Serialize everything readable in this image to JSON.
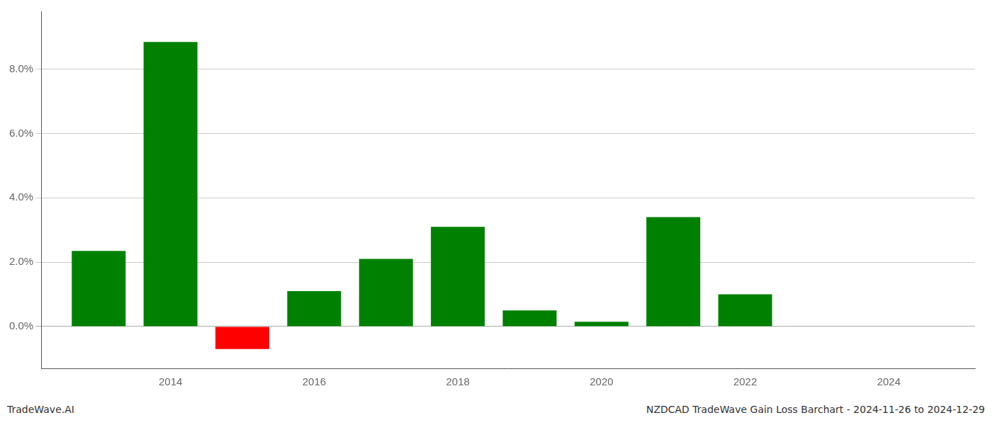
{
  "chart_data": {
    "type": "bar",
    "x": [
      2013,
      2014,
      2015,
      2016,
      2017,
      2018,
      2019,
      2020,
      2021,
      2022,
      2023
    ],
    "values": [
      2.35,
      8.85,
      -0.7,
      1.1,
      2.1,
      3.1,
      0.5,
      0.15,
      3.4,
      1.0,
      0.0
    ],
    "colors": [
      "#008000",
      "#008000",
      "#ff0000",
      "#008000",
      "#008000",
      "#008000",
      "#008000",
      "#008000",
      "#008000",
      "#008000",
      "#008000"
    ],
    "xlim": [
      2012.2,
      2025.2
    ],
    "xticks": [
      2014,
      2016,
      2018,
      2020,
      2022,
      2024
    ],
    "ylim": [
      -1.3,
      9.8
    ],
    "yticks": [
      {
        "value": 0.0,
        "label": "0.0%"
      },
      {
        "value": 2.0,
        "label": "2.0%"
      },
      {
        "value": 4.0,
        "label": "4.0%"
      },
      {
        "value": 6.0,
        "label": "6.0%"
      },
      {
        "value": 8.0,
        "label": "8.0%"
      }
    ],
    "grid": "y",
    "annotations": [
      "TradeWave.AI",
      "NZDCAD TradeWave Gain Loss Barchart - 2024-11-26 to 2024-12-29"
    ]
  }
}
